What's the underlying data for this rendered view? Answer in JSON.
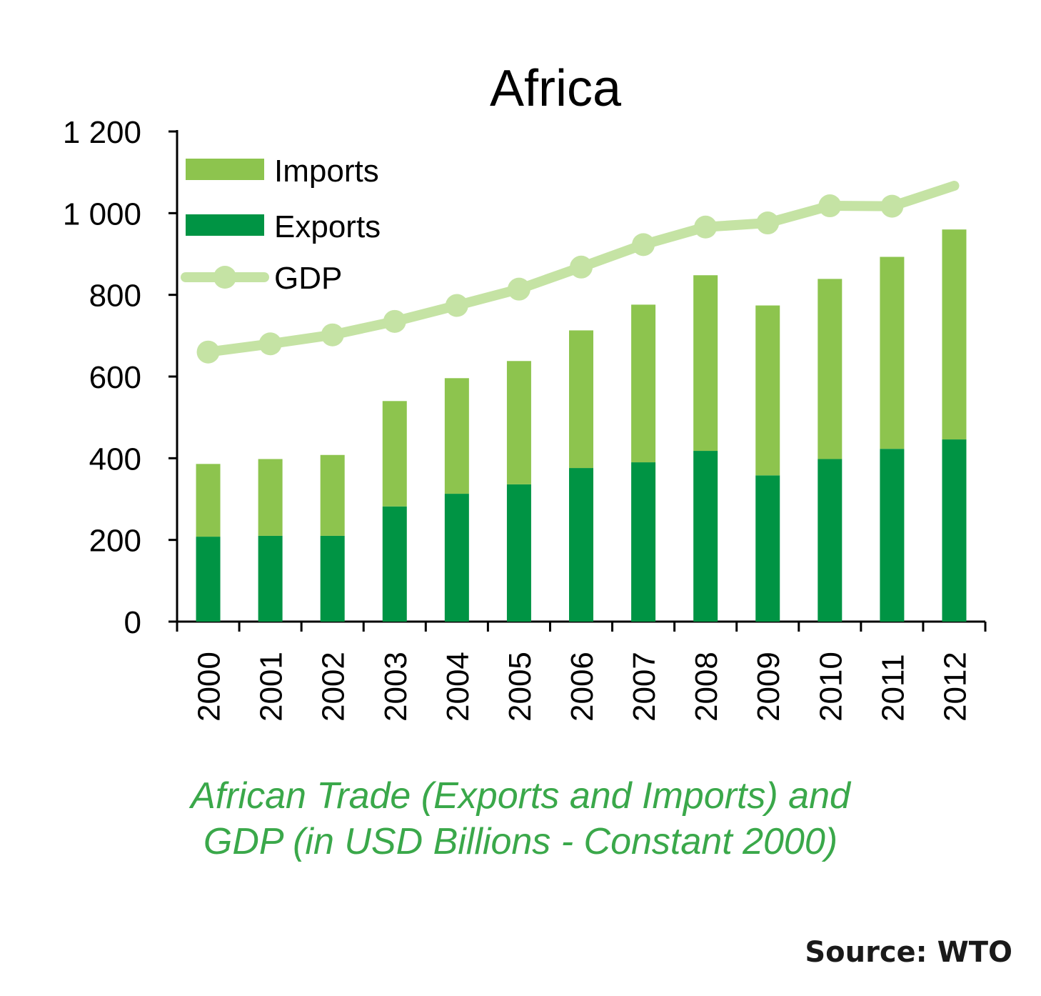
{
  "chart_data": {
    "type": "bar",
    "stacked": true,
    "title": "Africa",
    "categories": [
      "2000",
      "2001",
      "2002",
      "2003",
      "2004",
      "2005",
      "2006",
      "2007",
      "2008",
      "2009",
      "2010",
      "2011",
      "2012"
    ],
    "series": [
      {
        "name": "Exports",
        "kind": "bar",
        "color": "#009444",
        "values": [
          208,
          210,
          210,
          282,
          313,
          336,
          376,
          390,
          418,
          358,
          398,
          423,
          446
        ]
      },
      {
        "name": "Imports",
        "kind": "bar",
        "color": "#8dc44e",
        "values": [
          178,
          188,
          198,
          258,
          283,
          302,
          337,
          386,
          430,
          416,
          441,
          470,
          514
        ]
      },
      {
        "name": "GDP",
        "kind": "line",
        "color": "#c5e3a4",
        "values": [
          660,
          680,
          702,
          735,
          774,
          814,
          868,
          923,
          966,
          976,
          1018,
          1017,
          1067
        ]
      }
    ],
    "ylim": [
      0,
      1200
    ],
    "yticks": [
      0,
      200,
      400,
      600,
      800,
      1000,
      1200
    ],
    "ytick_labels": [
      "0",
      "200",
      "400",
      "600",
      "800",
      "1 000",
      "1 200"
    ],
    "xlabel": "",
    "ylabel": "",
    "legend_position": "top-left",
    "grid": false
  },
  "caption": {
    "line1": "African Trade (Exports and Imports) and",
    "line2": "GDP (in USD Billions - Constant 2000)"
  },
  "source": "Source: WTO"
}
